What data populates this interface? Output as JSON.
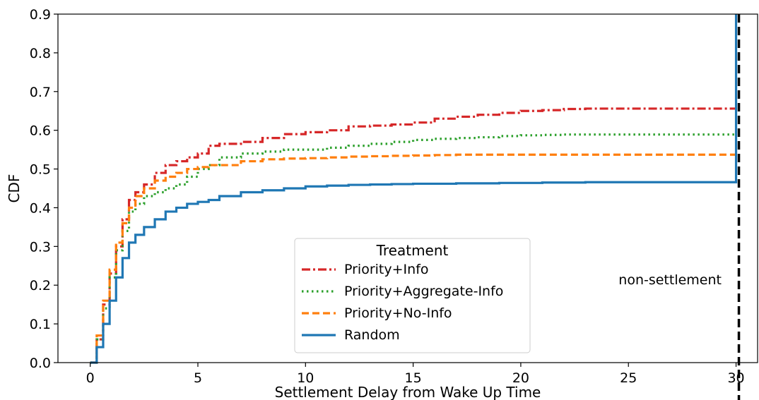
{
  "chart_data": {
    "type": "line",
    "xlabel": "Settlement Delay from Wake Up Time",
    "ylabel": "CDF",
    "xlim": [
      -1.5,
      31
    ],
    "ylim": [
      0,
      0.9
    ],
    "xticks": [
      0,
      5,
      10,
      15,
      20,
      25,
      30
    ],
    "yticks": [
      "0.0",
      "0.1",
      "0.2",
      "0.3",
      "0.4",
      "0.5",
      "0.6",
      "0.7",
      "0.8",
      "0.9"
    ],
    "grid": false,
    "legend": {
      "title": "Treatment",
      "placement": "lower center"
    },
    "annotation": {
      "text": "non-settlement",
      "x": 30
    },
    "series": [
      {
        "name": "Priority+Info",
        "color": "#d62728",
        "style": "dashdot",
        "x": [
          0,
          0.3,
          0.6,
          0.9,
          1.2,
          1.5,
          1.8,
          2.1,
          2.5,
          3.0,
          3.5,
          4.0,
          4.5,
          5.0,
          5.5,
          6.0,
          7.0,
          8.0,
          9.0,
          10.0,
          11.0,
          12.0,
          13.0,
          14.0,
          15.0,
          16.0,
          17.0,
          18.0,
          19.0,
          20.0,
          21.0,
          22.0,
          23.0,
          25.0,
          27.0,
          29.8,
          30.0
        ],
        "y": [
          0,
          0.06,
          0.15,
          0.23,
          0.3,
          0.37,
          0.42,
          0.44,
          0.46,
          0.49,
          0.51,
          0.52,
          0.53,
          0.54,
          0.56,
          0.565,
          0.57,
          0.58,
          0.59,
          0.595,
          0.6,
          0.61,
          0.612,
          0.615,
          0.62,
          0.63,
          0.635,
          0.64,
          0.645,
          0.65,
          0.652,
          0.655,
          0.656,
          0.656,
          0.656,
          0.656,
          0.656
        ]
      },
      {
        "name": "Priority+Aggregate-Info",
        "color": "#2ca02c",
        "style": "dotted",
        "x": [
          0,
          0.3,
          0.6,
          0.9,
          1.2,
          1.5,
          1.8,
          2.1,
          2.5,
          3.0,
          3.5,
          4.0,
          4.5,
          5.0,
          5.5,
          6.0,
          7.0,
          8.0,
          9.0,
          10.0,
          11.0,
          12.0,
          13.0,
          14.0,
          15.0,
          16.0,
          17.0,
          18.0,
          19.0,
          20.0,
          21.0,
          22.0,
          23.0,
          25.0,
          27.0,
          29.8,
          30.0
        ],
        "y": [
          0,
          0.06,
          0.14,
          0.22,
          0.29,
          0.34,
          0.39,
          0.41,
          0.43,
          0.44,
          0.45,
          0.46,
          0.48,
          0.5,
          0.51,
          0.53,
          0.54,
          0.545,
          0.55,
          0.55,
          0.555,
          0.56,
          0.565,
          0.57,
          0.575,
          0.578,
          0.58,
          0.582,
          0.585,
          0.587,
          0.588,
          0.589,
          0.589,
          0.589,
          0.589,
          0.589,
          0.589
        ]
      },
      {
        "name": "Priority+No-Info",
        "color": "#ff7f0e",
        "style": "dashed",
        "x": [
          0,
          0.3,
          0.6,
          0.9,
          1.2,
          1.5,
          1.8,
          2.1,
          2.5,
          3.0,
          3.5,
          4.0,
          4.5,
          5.0,
          5.5,
          6.0,
          7.0,
          8.0,
          9.0,
          10.0,
          11.0,
          12.0,
          13.0,
          14.0,
          15.0,
          16.0,
          17.0,
          18.0,
          19.0,
          20.0,
          21.0,
          22.0,
          23.0,
          25.0,
          27.0,
          29.8,
          30.0
        ],
        "y": [
          0,
          0.07,
          0.16,
          0.24,
          0.31,
          0.36,
          0.4,
          0.43,
          0.45,
          0.47,
          0.48,
          0.49,
          0.5,
          0.505,
          0.51,
          0.51,
          0.52,
          0.525,
          0.527,
          0.528,
          0.53,
          0.532,
          0.533,
          0.534,
          0.535,
          0.536,
          0.537,
          0.537,
          0.537,
          0.537,
          0.537,
          0.537,
          0.537,
          0.537,
          0.537,
          0.537,
          0.537
        ]
      },
      {
        "name": "Random",
        "color": "#1f77b4",
        "style": "solid",
        "x": [
          0,
          0.3,
          0.6,
          0.9,
          1.2,
          1.5,
          1.8,
          2.1,
          2.5,
          3.0,
          3.5,
          4.0,
          4.5,
          5.0,
          5.5,
          6.0,
          7.0,
          8.0,
          9.0,
          10.0,
          11.0,
          12.0,
          13.0,
          14.0,
          15.0,
          16.0,
          17.0,
          18.0,
          19.0,
          20.0,
          21.0,
          22.0,
          23.0,
          25.0,
          27.0,
          29.8,
          30.0
        ],
        "y": [
          0,
          0.04,
          0.1,
          0.16,
          0.22,
          0.27,
          0.31,
          0.33,
          0.35,
          0.37,
          0.39,
          0.4,
          0.41,
          0.415,
          0.42,
          0.43,
          0.44,
          0.445,
          0.45,
          0.455,
          0.457,
          0.459,
          0.46,
          0.461,
          0.462,
          0.462,
          0.463,
          0.463,
          0.464,
          0.464,
          0.465,
          0.465,
          0.466,
          0.466,
          0.466,
          0.466,
          0.9
        ]
      }
    ]
  }
}
